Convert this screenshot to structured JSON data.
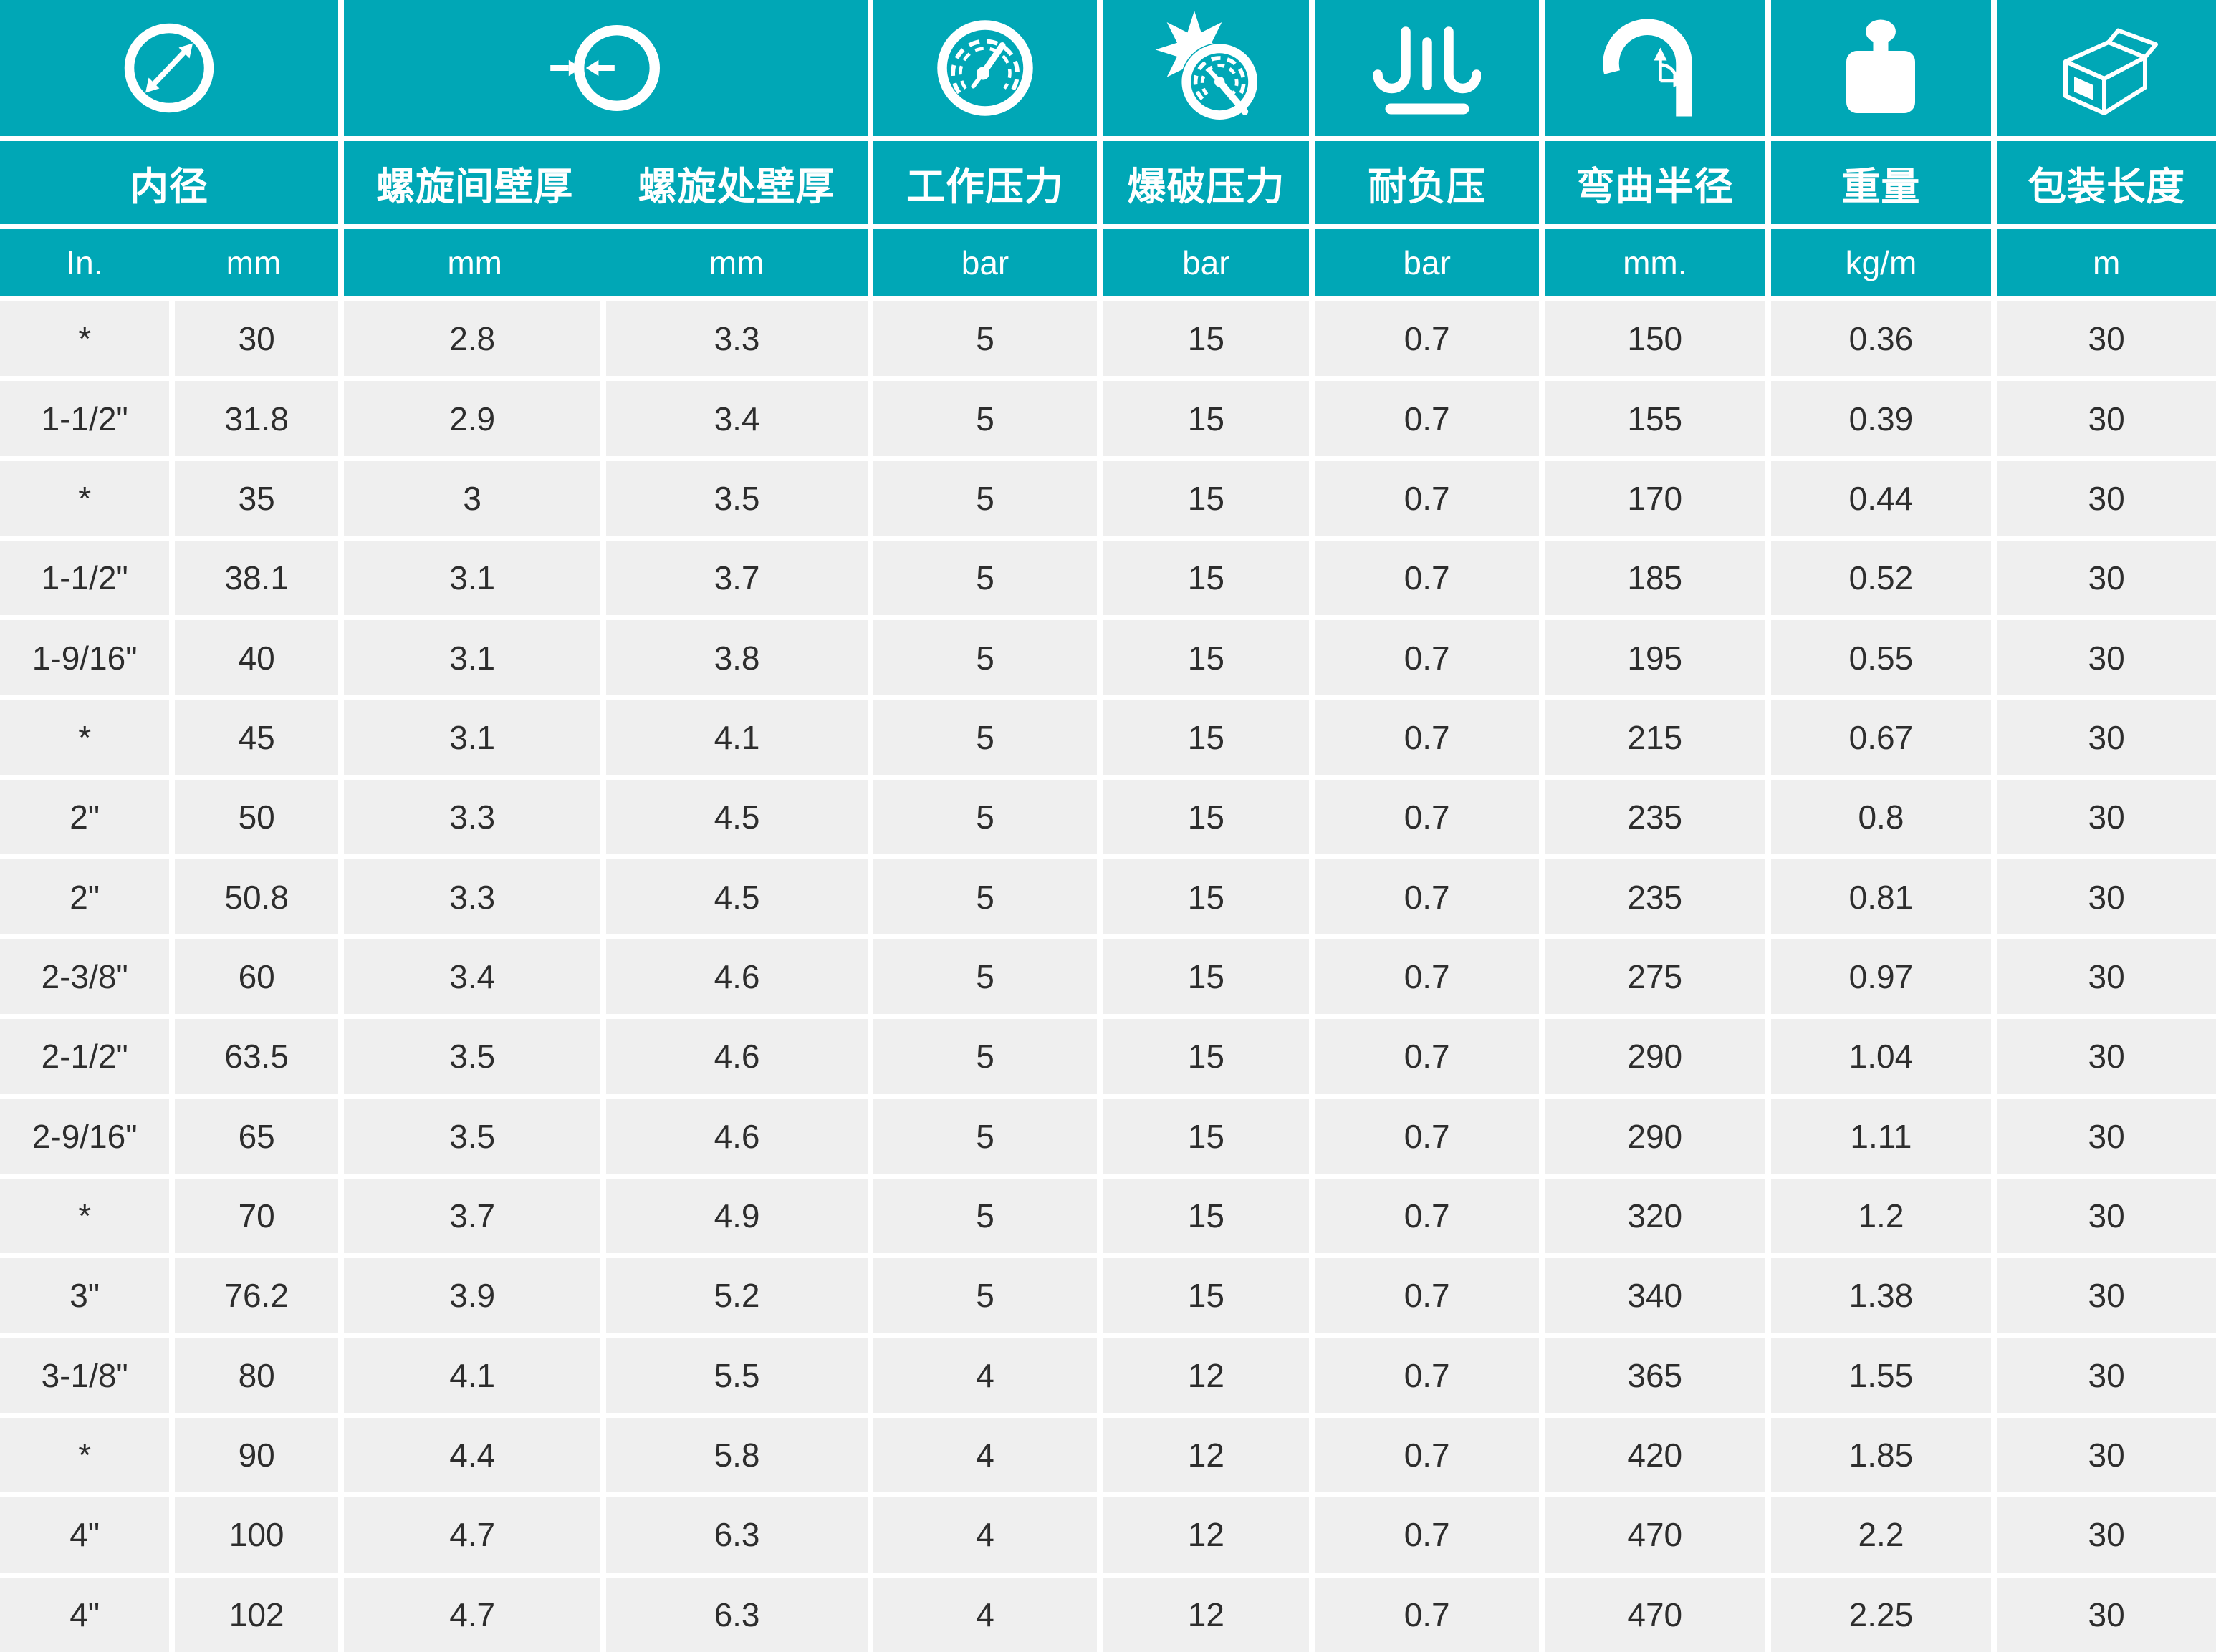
{
  "colors": {
    "teal": "#00a7b6",
    "row_background": "#efefef",
    "text": "#2d2d2d",
    "grid_lines": "#ffffff"
  },
  "columns": {
    "inner_diameter": {
      "label": "内径",
      "units": [
        "In.",
        "mm"
      ],
      "icon": "inner-diameter-icon"
    },
    "wall_thickness": {
      "labels": [
        "螺旋间壁厚",
        "螺旋处壁厚"
      ],
      "units": [
        "mm",
        "mm"
      ],
      "icon": "wall-thickness-icon"
    },
    "working_pressure": {
      "label": "工作压力",
      "unit": "bar",
      "icon": "pressure-gauge-icon"
    },
    "burst_pressure": {
      "label": "爆破压力",
      "unit": "bar",
      "icon": "burst-pressure-icon"
    },
    "vacuum": {
      "label": "耐负压",
      "unit": "bar",
      "icon": "vacuum-icon"
    },
    "bend_radius": {
      "label": "弯曲半径",
      "unit": "mm.",
      "icon": "bend-radius-icon"
    },
    "weight": {
      "label": "重量",
      "unit": "kg/m",
      "icon": "weight-icon"
    },
    "package_length": {
      "label": "包装长度",
      "unit": "m",
      "icon": "package-box-icon"
    }
  },
  "table": {
    "rows": [
      [
        "*",
        "30",
        "2.8",
        "3.3",
        "5",
        "15",
        "0.7",
        "150",
        "0.36",
        "30"
      ],
      [
        "1-1/2\"",
        "31.8",
        "2.9",
        "3.4",
        "5",
        "15",
        "0.7",
        "155",
        "0.39",
        "30"
      ],
      [
        "*",
        "35",
        "3",
        "3.5",
        "5",
        "15",
        "0.7",
        "170",
        "0.44",
        "30"
      ],
      [
        "1-1/2\"",
        "38.1",
        "3.1",
        "3.7",
        "5",
        "15",
        "0.7",
        "185",
        "0.52",
        "30"
      ],
      [
        "1-9/16\"",
        "40",
        "3.1",
        "3.8",
        "5",
        "15",
        "0.7",
        "195",
        "0.55",
        "30"
      ],
      [
        "*",
        "45",
        "3.1",
        "4.1",
        "5",
        "15",
        "0.7",
        "215",
        "0.67",
        "30"
      ],
      [
        "2\"",
        "50",
        "3.3",
        "4.5",
        "5",
        "15",
        "0.7",
        "235",
        "0.8",
        "30"
      ],
      [
        "2\"",
        "50.8",
        "3.3",
        "4.5",
        "5",
        "15",
        "0.7",
        "235",
        "0.81",
        "30"
      ],
      [
        "2-3/8\"",
        "60",
        "3.4",
        "4.6",
        "5",
        "15",
        "0.7",
        "275",
        "0.97",
        "30"
      ],
      [
        "2-1/2\"",
        "63.5",
        "3.5",
        "4.6",
        "5",
        "15",
        "0.7",
        "290",
        "1.04",
        "30"
      ],
      [
        "2-9/16\"",
        "65",
        "3.5",
        "4.6",
        "5",
        "15",
        "0.7",
        "290",
        "1.11",
        "30"
      ],
      [
        "*",
        "70",
        "3.7",
        "4.9",
        "5",
        "15",
        "0.7",
        "320",
        "1.2",
        "30"
      ],
      [
        "3\"",
        "76.2",
        "3.9",
        "5.2",
        "5",
        "15",
        "0.7",
        "340",
        "1.38",
        "30"
      ],
      [
        "3-1/8\"",
        "80",
        "4.1",
        "5.5",
        "4",
        "12",
        "0.7",
        "365",
        "1.55",
        "30"
      ],
      [
        "*",
        "90",
        "4.4",
        "5.8",
        "4",
        "12",
        "0.7",
        "420",
        "1.85",
        "30"
      ],
      [
        "4\"",
        "100",
        "4.7",
        "6.3",
        "4",
        "12",
        "0.7",
        "470",
        "2.2",
        "30"
      ],
      [
        "4\"",
        "102",
        "4.7",
        "6.3",
        "4",
        "12",
        "0.7",
        "470",
        "2.25",
        "30"
      ]
    ]
  }
}
